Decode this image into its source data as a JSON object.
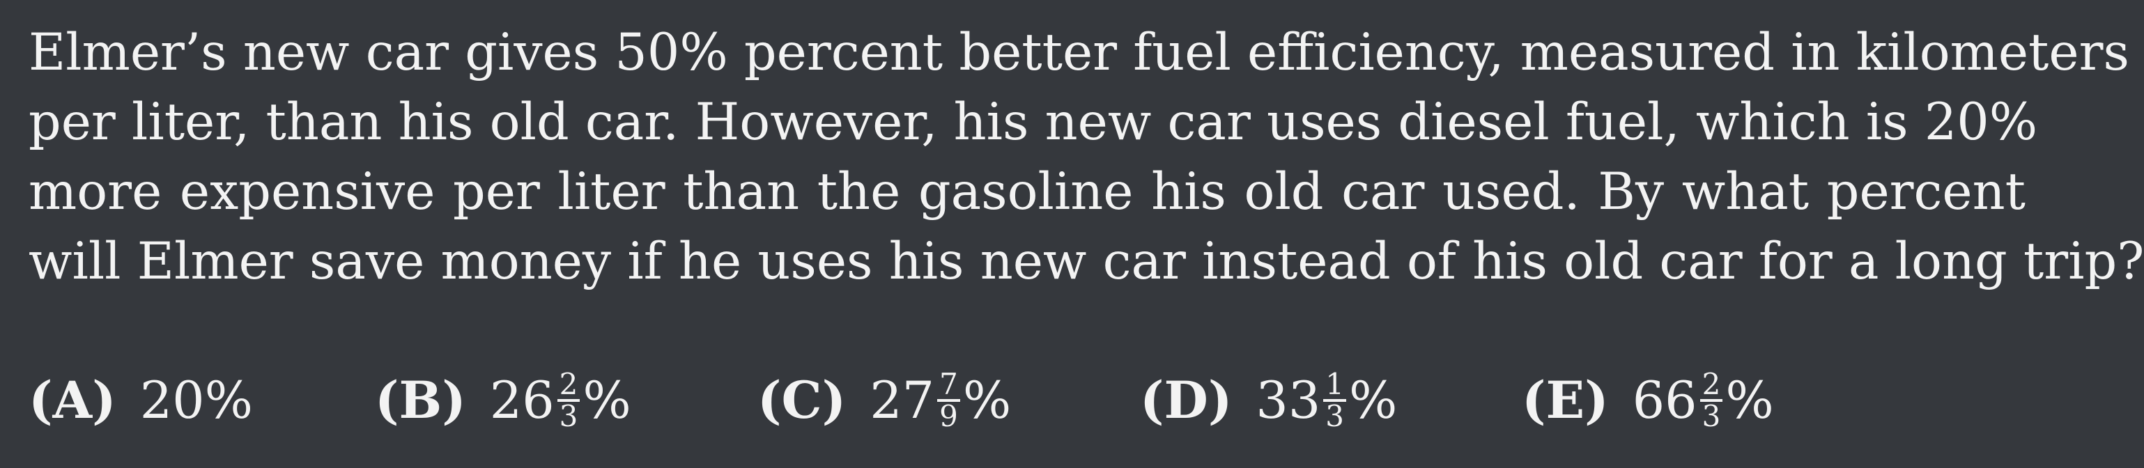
{
  "problem": {
    "lines": [
      "Elmer’s new car gives 50% percent better fuel efficiency, measured in kilometers",
      "per liter, than his old car. However, his new car uses diesel fuel, which is 20%",
      "more expensive per liter than the gasoline his old car used. By what percent",
      "will Elmer save money if he uses his new car instead of his old car for a long trip?"
    ]
  },
  "choices": [
    {
      "letter": "(A)",
      "whole": "20",
      "num": "",
      "den": "",
      "unit": "%"
    },
    {
      "letter": "(B)",
      "whole": "26",
      "num": "2",
      "den": "3",
      "unit": "%"
    },
    {
      "letter": "(C)",
      "whole": "27",
      "num": "7",
      "den": "9",
      "unit": "%"
    },
    {
      "letter": "(D)",
      "whole": "33",
      "num": "1",
      "den": "3",
      "unit": "%"
    },
    {
      "letter": "(E)",
      "whole": "66",
      "num": "2",
      "den": "3",
      "unit": "%"
    }
  ],
  "colors": {
    "background": "#35383d",
    "text": "#f3f3f3"
  }
}
